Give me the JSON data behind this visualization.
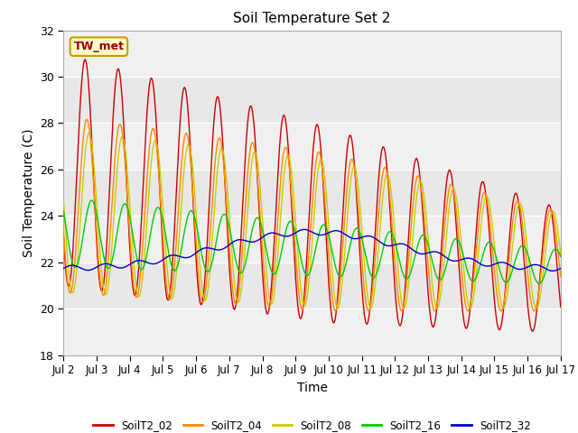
{
  "title": "Soil Temperature Set 2",
  "xlabel": "Time",
  "ylabel": "Soil Temperature (C)",
  "ylim": [
    18,
    32
  ],
  "yticks": [
    18,
    20,
    22,
    24,
    26,
    28,
    30,
    32
  ],
  "xtick_labels": [
    "Jul 2",
    "Jul 3",
    "Jul 4",
    "Jul 5",
    "Jul 6",
    "Jul 7",
    "Jul 8",
    "Jul 9",
    "Jul 10",
    "Jul 11",
    "Jul 12",
    "Jul 13",
    "Jul 14",
    "Jul 15",
    "Jul 16",
    "Jul 17"
  ],
  "annotation_text": "TW_met",
  "series_colors": {
    "SoilT2_02": "#cc0000",
    "SoilT2_04": "#ff8800",
    "SoilT2_08": "#cccc00",
    "SoilT2_16": "#00cc00",
    "SoilT2_32": "#0000cc"
  },
  "line_width": 1.0,
  "fig_bg_color": "#ffffff",
  "plot_bg_color": "#e8e8e8",
  "grid_band_color": "#d0d0d0",
  "white_band_color": "#f0f0f0"
}
